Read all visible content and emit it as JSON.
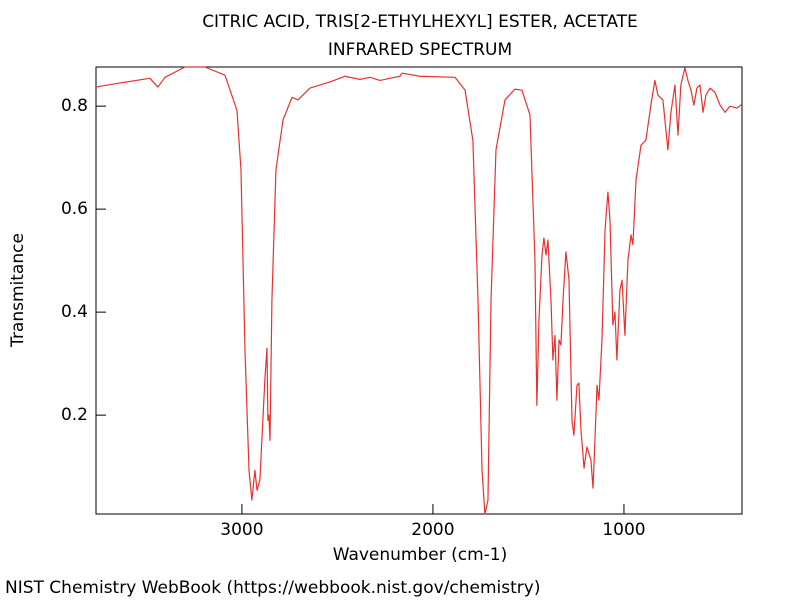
{
  "chart_data": {
    "type": "line",
    "title": "CITRIC ACID, TRIS[2-ETHYLHEXYL] ESTER, ACETATE",
    "subtitle": "INFRARED SPECTRUM",
    "x_label": "Wavenumber (cm-1)",
    "y_label": "Transmitance",
    "source": "NIST Chemistry WebBook (https://webbook.nist.gov/chemistry)",
    "xlim": [
      3764,
      382
    ],
    "xticks": [
      3000,
      2000,
      1000
    ],
    "ylim": [
      0.008,
      0.876
    ],
    "yticks": [
      0.2,
      0.4,
      0.6,
      0.8
    ],
    "x": [
      3764,
      3639,
      3482,
      3440,
      3403,
      3298,
      3194,
      3089,
      3026,
      3005,
      2984,
      2963,
      2948,
      2932,
      2921,
      2906,
      2880,
      2869,
      2864,
      2859,
      2853,
      2843,
      2822,
      2785,
      2738,
      2707,
      2644,
      2539,
      2461,
      2382,
      2330,
      2277,
      2173,
      2162,
      2068,
      1885,
      1832,
      1791,
      1764,
      1743,
      1728,
      1712,
      1696,
      1670,
      1623,
      1571,
      1534,
      1492,
      1466,
      1456,
      1445,
      1429,
      1419,
      1408,
      1398,
      1382,
      1372,
      1361,
      1351,
      1340,
      1330,
      1319,
      1304,
      1288,
      1272,
      1262,
      1246,
      1236,
      1225,
      1209,
      1194,
      1173,
      1162,
      1152,
      1141,
      1131,
      1115,
      1099,
      1084,
      1073,
      1058,
      1047,
      1037,
      1021,
      1010,
      995,
      979,
      963,
      953,
      937,
      911,
      885,
      859,
      838,
      822,
      796,
      770,
      754,
      733,
      717,
      702,
      681,
      665,
      649,
      634,
      618,
      602,
      586,
      571,
      550,
      524,
      497,
      471,
      445,
      408,
      382
    ],
    "series": [
      {
        "color": "#e8312f",
        "values": [
          0.837,
          0.845,
          0.854,
          0.837,
          0.856,
          0.876,
          0.876,
          0.86,
          0.792,
          0.676,
          0.326,
          0.093,
          0.035,
          0.093,
          0.054,
          0.074,
          0.268,
          0.33,
          0.19,
          0.2,
          0.151,
          0.423,
          0.676,
          0.773,
          0.817,
          0.812,
          0.835,
          0.847,
          0.858,
          0.852,
          0.856,
          0.85,
          0.858,
          0.864,
          0.858,
          0.856,
          0.831,
          0.734,
          0.423,
          0.093,
          0.008,
          0.035,
          0.423,
          0.715,
          0.812,
          0.833,
          0.831,
          0.783,
          0.501,
          0.219,
          0.384,
          0.511,
          0.544,
          0.511,
          0.54,
          0.423,
          0.307,
          0.355,
          0.229,
          0.346,
          0.336,
          0.423,
          0.517,
          0.464,
          0.19,
          0.161,
          0.258,
          0.262,
          0.171,
          0.097,
          0.138,
          0.113,
          0.058,
          0.151,
          0.258,
          0.229,
          0.346,
          0.559,
          0.633,
          0.578,
          0.375,
          0.4,
          0.307,
          0.443,
          0.462,
          0.355,
          0.501,
          0.55,
          0.531,
          0.656,
          0.724,
          0.734,
          0.802,
          0.85,
          0.821,
          0.812,
          0.715,
          0.788,
          0.841,
          0.744,
          0.841,
          0.874,
          0.85,
          0.831,
          0.802,
          0.835,
          0.841,
          0.788,
          0.821,
          0.835,
          0.827,
          0.802,
          0.788,
          0.8,
          0.796,
          0.804
        ]
      }
    ]
  }
}
